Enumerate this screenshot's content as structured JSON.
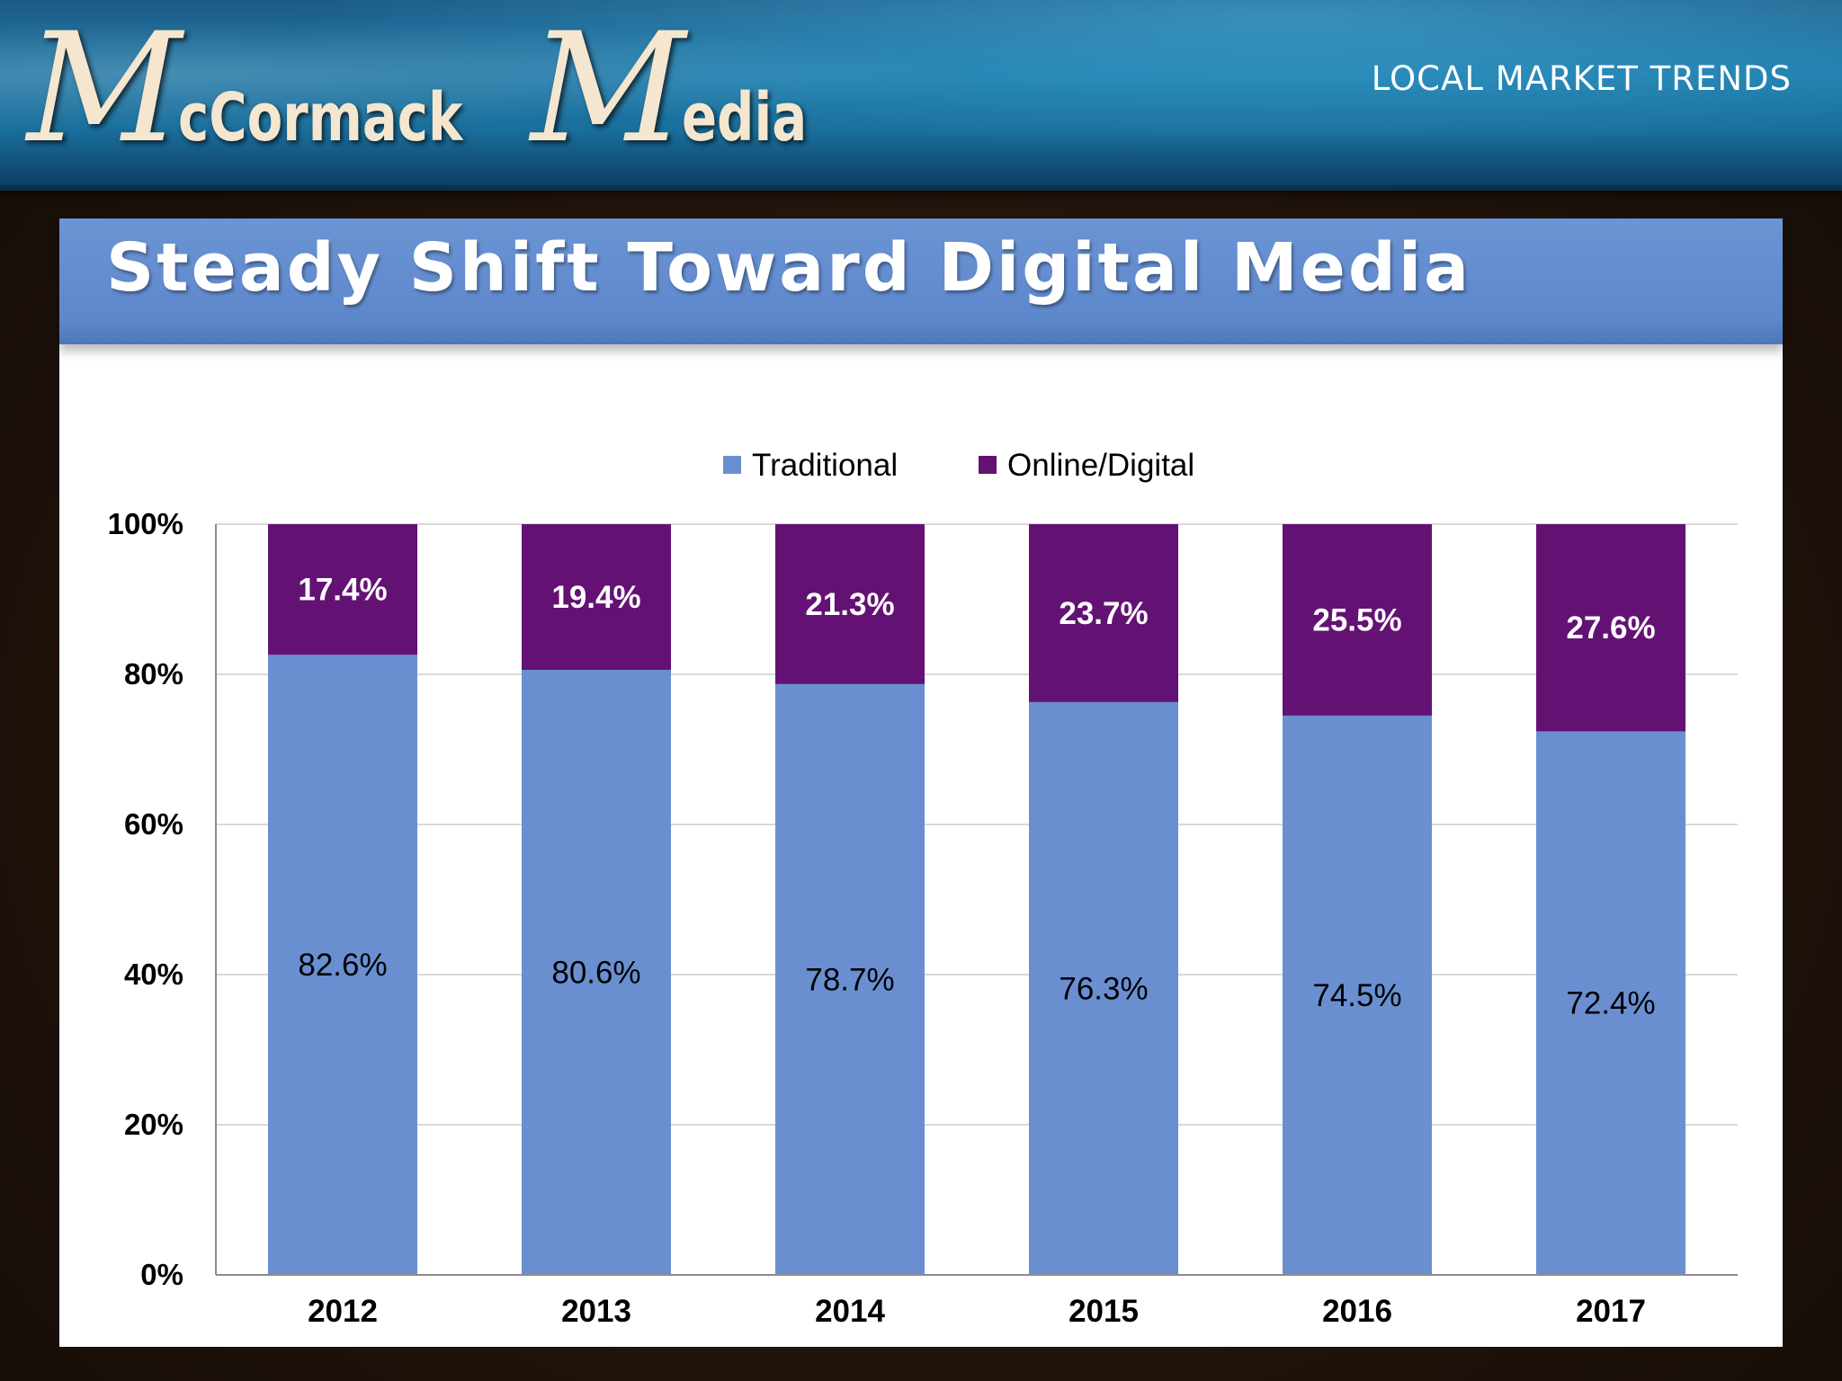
{
  "header": {
    "logo_part1_big": "M",
    "logo_part1_small": "cCormack",
    "logo_part2_big": "M",
    "logo_part2_small": "edia",
    "section_label": "LOCAL MARKET TRENDS"
  },
  "slide": {
    "title": "Steady Shift Toward Digital Media"
  },
  "colors": {
    "traditional": "#6a8fd1",
    "online_digital": "#641174",
    "title_bar": "#5e88cc"
  },
  "chart_data": {
    "type": "bar",
    "stacked": true,
    "categories": [
      "2012",
      "2013",
      "2014",
      "2015",
      "2016",
      "2017"
    ],
    "series": [
      {
        "name": "Traditional",
        "values": [
          82.6,
          80.6,
          78.7,
          76.3,
          74.5,
          72.4
        ],
        "labels": [
          "82.6%",
          "80.6%",
          "78.7%",
          "76.3%",
          "74.5%",
          "72.4%"
        ]
      },
      {
        "name": "Online/Digital",
        "values": [
          17.4,
          19.4,
          21.3,
          23.7,
          25.5,
          27.6
        ],
        "labels": [
          "17.4%",
          "19.4%",
          "21.3%",
          "23.7%",
          "25.5%",
          "27.6%"
        ]
      }
    ],
    "ylim": [
      0,
      100
    ],
    "yticks": [
      "0%",
      "20%",
      "40%",
      "60%",
      "80%",
      "100%"
    ],
    "grid": true,
    "legend": "top-center"
  }
}
